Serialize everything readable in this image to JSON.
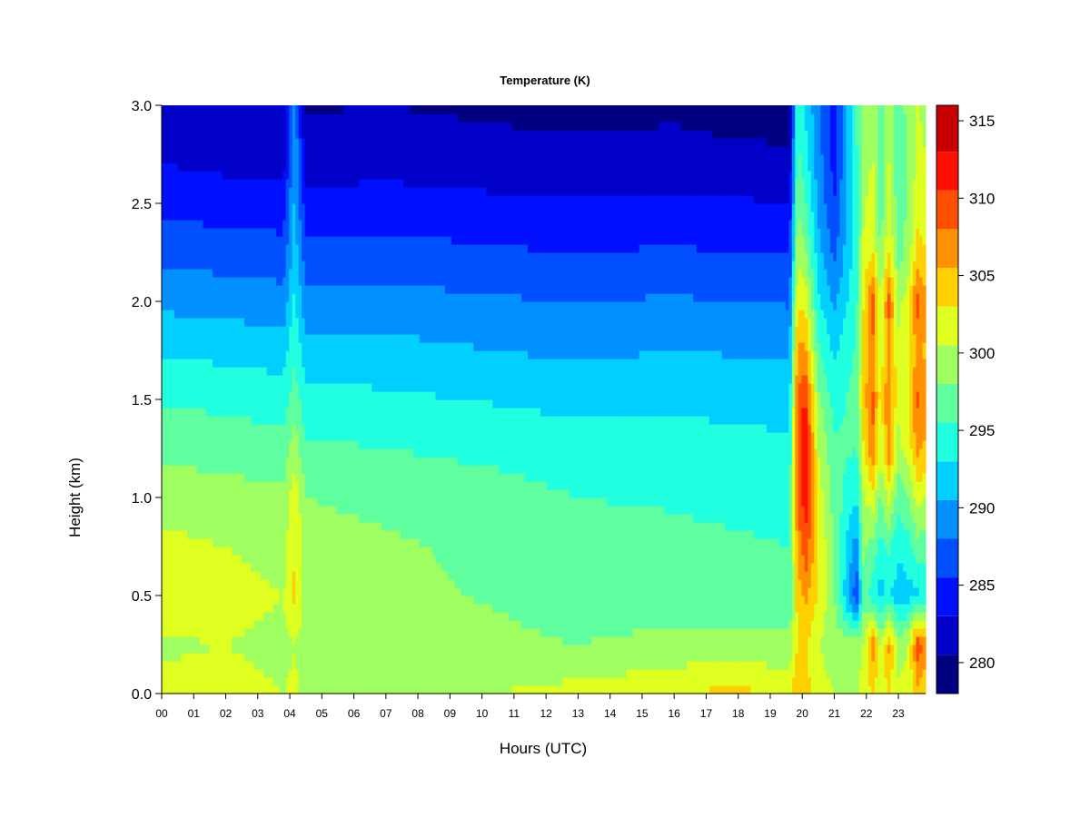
{
  "chart_data": {
    "type": "heatmap",
    "title": "Temperature (K)",
    "xlabel": "Hours (UTC)",
    "ylabel": "Height (km)",
    "x_ticks": [
      "00",
      "01",
      "02",
      "03",
      "04",
      "05",
      "06",
      "07",
      "08",
      "09",
      "10",
      "11",
      "12",
      "13",
      "14",
      "15",
      "16",
      "17",
      "18",
      "19",
      "20",
      "21",
      "22",
      "23"
    ],
    "xlim": [
      0,
      23.85
    ],
    "y_ticks": [
      "0.0",
      "0.5",
      "1.0",
      "1.5",
      "2.0",
      "2.5",
      "3.0"
    ],
    "ylim": [
      0.0,
      3.0
    ],
    "colorbar": {
      "ticks": [
        "280",
        "285",
        "290",
        "295",
        "300",
        "305",
        "310",
        "315"
      ],
      "range": [
        278,
        316
      ],
      "levels": [
        278,
        280.5,
        283,
        285.5,
        288,
        290.5,
        293,
        295.5,
        298,
        300.5,
        303,
        305.5,
        308,
        310.5,
        313,
        316
      ],
      "colors": [
        "#000080",
        "#0000c8",
        "#0010ff",
        "#0050ff",
        "#0090ff",
        "#00cfff",
        "#20ffdf",
        "#5fffa0",
        "#9fff60",
        "#dfff20",
        "#ffd000",
        "#ff9000",
        "#ff5000",
        "#ff1000",
        "#c80000",
        "#800000"
      ]
    },
    "profile_heights_km": [
      0.0,
      0.25,
      0.5,
      0.75,
      1.0,
      1.25,
      1.5,
      1.75,
      2.0,
      2.25,
      2.5,
      2.75,
      3.0
    ],
    "profiles": [
      {
        "hour": 0.0,
        "temps": [
          301,
          300.2,
          302.2,
          301.2,
          299.3,
          297.4,
          295.3,
          292.6,
          289.9,
          287.2,
          284.8,
          282.6,
          281.2
        ]
      },
      {
        "hour": 2.0,
        "temps": [
          301.5,
          300.5,
          301.5,
          300.5,
          299.0,
          297.0,
          294.8,
          292.3,
          289.5,
          286.8,
          284.3,
          282.0,
          280.8
        ]
      },
      {
        "hour": 3.8,
        "temps": [
          300.5,
          299.8,
          300.5,
          299.5,
          298.5,
          296.5,
          294.3,
          291.8,
          289.0,
          286.5,
          284.0,
          281.8,
          280.5
        ]
      },
      {
        "hour": 4.15,
        "temps": [
          301.0,
          300.5,
          303.5,
          303.0,
          302.5,
          299.5,
          297.0,
          295.0,
          293.5,
          292.0,
          291.0,
          290.0,
          289.5
        ]
      },
      {
        "hour": 4.5,
        "temps": [
          300.0,
          299.3,
          299.5,
          298.8,
          298.0,
          296.0,
          293.8,
          291.5,
          288.7,
          286.2,
          283.8,
          281.5,
          280.3
        ]
      },
      {
        "hour": 7.0,
        "temps": [
          300.0,
          299.0,
          298.5,
          298.3,
          297.5,
          295.5,
          293.5,
          291.3,
          289.0,
          286.5,
          284.0,
          281.8,
          280.5
        ]
      },
      {
        "hour": 10.5,
        "temps": [
          300.5,
          298.5,
          297.8,
          297.5,
          296.5,
          294.8,
          292.8,
          290.5,
          288.3,
          285.8,
          283.5,
          281.3,
          280.0
        ]
      },
      {
        "hour": 13.0,
        "temps": [
          301.5,
          298.0,
          296.8,
          296.3,
          295.5,
          294.0,
          292.3,
          290.0,
          288.0,
          285.5,
          283.3,
          281.0,
          279.8
        ]
      },
      {
        "hour": 16.0,
        "temps": [
          302.5,
          298.8,
          296.5,
          296.0,
          295.3,
          294.0,
          292.5,
          290.5,
          288.3,
          285.8,
          283.5,
          281.3,
          280.0
        ]
      },
      {
        "hour": 17.8,
        "temps": [
          304.0,
          299.0,
          296.3,
          295.8,
          295.0,
          293.8,
          292.3,
          290.3,
          288.0,
          285.5,
          283.3,
          281.0,
          279.5
        ]
      },
      {
        "hour": 19.6,
        "temps": [
          302.0,
          298.8,
          296.0,
          295.5,
          294.8,
          293.5,
          292.0,
          290.0,
          287.8,
          285.3,
          283.0,
          280.8,
          279.3
        ]
      },
      {
        "hour": 19.85,
        "temps": [
          306.0,
          303.0,
          304.0,
          306.0,
          308.0,
          309.0,
          308.5,
          306.0,
          303.0,
          300.0,
          298.0,
          296.0,
          294.5
        ]
      },
      {
        "hour": 20.1,
        "temps": [
          304.0,
          303.5,
          306.0,
          310.0,
          312.0,
          313.0,
          311.0,
          306.0,
          302.0,
          298.5,
          296.0,
          294.0,
          292.5
        ]
      },
      {
        "hour": 20.5,
        "temps": [
          301.5,
          300.5,
          303.0,
          303.0,
          302.0,
          300.5,
          298.5,
          296.0,
          293.5,
          291.5,
          290.0,
          289.0,
          288.5
        ]
      },
      {
        "hour": 21.0,
        "temps": [
          300.5,
          299.5,
          298.0,
          297.5,
          297.0,
          296.0,
          294.5,
          292.5,
          290.0,
          287.5,
          285.5,
          284.5,
          284.0
        ]
      },
      {
        "hour": 21.7,
        "temps": [
          300.5,
          299.0,
          286.0,
          289.0,
          293.0,
          295.5,
          296.5,
          296.0,
          295.0,
          294.5,
          294.5,
          295.0,
          296.0
        ]
      },
      {
        "hour": 21.9,
        "temps": [
          302.0,
          300.5,
          297.0,
          298.5,
          300.0,
          302.5,
          304.0,
          303.5,
          302.5,
          301.0,
          300.0,
          299.5,
          299.5
        ]
      },
      {
        "hour": 22.2,
        "temps": [
          303.0,
          307.0,
          294.0,
          297.0,
          302.0,
          308.0,
          308.5,
          307.5,
          309.5,
          303.0,
          301.5,
          300.5,
          300.0
        ]
      },
      {
        "hour": 22.45,
        "temps": [
          301.5,
          300.0,
          292.0,
          294.5,
          297.5,
          301.0,
          302.0,
          301.5,
          300.5,
          297.5,
          296.5,
          296.0,
          296.0
        ]
      },
      {
        "hour": 22.7,
        "temps": [
          303.0,
          306.0,
          293.5,
          296.0,
          301.5,
          307.5,
          308.0,
          307.0,
          309.0,
          303.0,
          301.5,
          300.5,
          300.0
        ]
      },
      {
        "hour": 23.0,
        "temps": [
          301.0,
          299.5,
          291.5,
          293.5,
          296.5,
          300.0,
          301.0,
          301.0,
          300.0,
          297.0,
          296.5,
          296.0,
          296.0
        ]
      },
      {
        "hour": 23.3,
        "temps": [
          301.5,
          300.5,
          292.0,
          294.5,
          298.0,
          301.5,
          302.5,
          302.0,
          301.5,
          299.0,
          298.5,
          298.5,
          299.0
        ]
      },
      {
        "hour": 23.6,
        "temps": [
          304.5,
          309.5,
          292.5,
          297.0,
          301.5,
          306.5,
          308.5,
          306.5,
          309.0,
          304.0,
          302.0,
          301.0,
          300.5
        ]
      },
      {
        "hour": 23.85,
        "temps": [
          303.0,
          307.0,
          293.0,
          296.5,
          300.5,
          305.0,
          306.0,
          305.0,
          306.0,
          303.0,
          301.0,
          300.5,
          300.0
        ]
      }
    ],
    "grid": false,
    "legend": "colorbar-right"
  }
}
